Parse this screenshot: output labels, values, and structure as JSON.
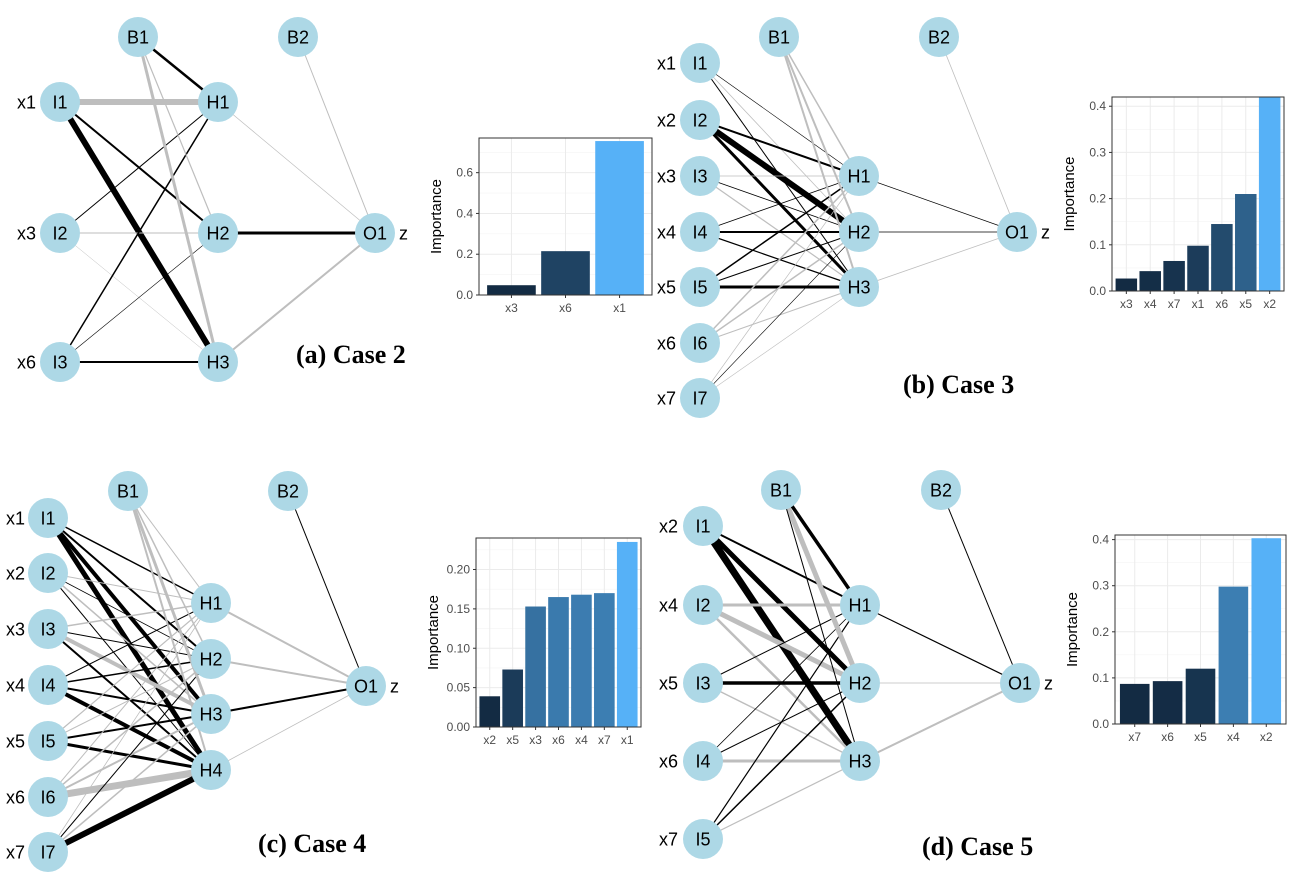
{
  "colors": {
    "node_fill": "#add8e6",
    "edge_positive": "#000000",
    "edge_negative": "#bebebe",
    "bar_dark": "#132b43",
    "bar_light": "#56b1f7"
  },
  "panels": [
    {
      "id": "a",
      "caption": "(a) Case 2",
      "inputs": [
        {
          "node": "I1",
          "var": "x1"
        },
        {
          "node": "I2",
          "var": "x3"
        },
        {
          "node": "I3",
          "var": "x6"
        }
      ],
      "hidden": [
        "H1",
        "H2",
        "H3"
      ],
      "bias_hidden": "B1",
      "bias_output": "B2",
      "output": {
        "node": "O1",
        "var": "z"
      },
      "chart_data": {
        "type": "bar",
        "categories": [
          "x3",
          "x6",
          "x1"
        ],
        "values": [
          0.048,
          0.215,
          0.755
        ],
        "ylabel": "Importance",
        "ylim": [
          0,
          0.77
        ],
        "yticks": [
          "0.0",
          "0.2",
          "0.4",
          "0.6"
        ],
        "ytick_values": [
          0,
          0.2,
          0.4,
          0.6
        ]
      }
    },
    {
      "id": "b",
      "caption": "(b) Case 3",
      "inputs": [
        {
          "node": "I1",
          "var": "x1"
        },
        {
          "node": "I2",
          "var": "x2"
        },
        {
          "node": "I3",
          "var": "x3"
        },
        {
          "node": "I4",
          "var": "x4"
        },
        {
          "node": "I5",
          "var": "x5"
        },
        {
          "node": "I6",
          "var": "x6"
        },
        {
          "node": "I7",
          "var": "x7"
        }
      ],
      "hidden": [
        "H1",
        "H2",
        "H3"
      ],
      "bias_hidden": "B1",
      "bias_output": "B2",
      "output": {
        "node": "O1",
        "var": "z"
      },
      "chart_data": {
        "type": "bar",
        "categories": [
          "x3",
          "x4",
          "x7",
          "x1",
          "x6",
          "x5",
          "x2"
        ],
        "values": [
          0.027,
          0.043,
          0.065,
          0.098,
          0.145,
          0.21,
          0.42
        ],
        "ylabel": "Importance",
        "ylim": [
          0,
          0.42
        ],
        "yticks": [
          "0.0",
          "0.1",
          "0.2",
          "0.3",
          "0.4"
        ],
        "ytick_values": [
          0,
          0.1,
          0.2,
          0.3,
          0.4
        ]
      }
    },
    {
      "id": "c",
      "caption": "(c) Case 4",
      "inputs": [
        {
          "node": "I1",
          "var": "x1"
        },
        {
          "node": "I2",
          "var": "x2"
        },
        {
          "node": "I3",
          "var": "x3"
        },
        {
          "node": "I4",
          "var": "x4"
        },
        {
          "node": "I5",
          "var": "x5"
        },
        {
          "node": "I6",
          "var": "x6"
        },
        {
          "node": "I7",
          "var": "x7"
        }
      ],
      "hidden": [
        "H1",
        "H2",
        "H3",
        "H4"
      ],
      "bias_hidden": "B1",
      "bias_output": "B2",
      "output": {
        "node": "O1",
        "var": "z"
      },
      "chart_data": {
        "type": "bar",
        "categories": [
          "x2",
          "x5",
          "x3",
          "x6",
          "x4",
          "x7",
          "x1"
        ],
        "values": [
          0.039,
          0.073,
          0.153,
          0.165,
          0.168,
          0.17,
          0.235
        ],
        "ylabel": "Importance",
        "ylim": [
          0,
          0.24
        ],
        "yticks": [
          "0.00",
          "0.05",
          "0.10",
          "0.15",
          "0.20"
        ],
        "ytick_values": [
          0,
          0.05,
          0.1,
          0.15,
          0.2
        ]
      }
    },
    {
      "id": "d",
      "caption": "(d) Case 5",
      "inputs": [
        {
          "node": "I1",
          "var": "x2"
        },
        {
          "node": "I2",
          "var": "x4"
        },
        {
          "node": "I3",
          "var": "x5"
        },
        {
          "node": "I4",
          "var": "x6"
        },
        {
          "node": "I5",
          "var": "x7"
        }
      ],
      "hidden": [
        "H1",
        "H2",
        "H3"
      ],
      "bias_hidden": "B1",
      "bias_output": "B2",
      "output": {
        "node": "O1",
        "var": "z"
      },
      "chart_data": {
        "type": "bar",
        "categories": [
          "x7",
          "x6",
          "x5",
          "x4",
          "x2"
        ],
        "values": [
          0.087,
          0.093,
          0.12,
          0.298,
          0.403
        ],
        "ylabel": "Importance",
        "ylim": [
          0,
          0.41
        ],
        "yticks": [
          "0.0",
          "0.1",
          "0.2",
          "0.3",
          "0.4"
        ],
        "ytick_values": [
          0,
          0.1,
          0.2,
          0.3,
          0.4
        ]
      }
    }
  ]
}
